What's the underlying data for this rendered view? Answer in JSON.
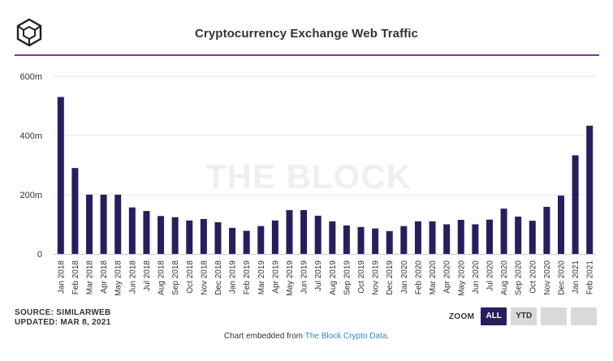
{
  "header": {
    "title": "Cryptocurrency Exchange Web Traffic",
    "logo_icon": "the-block-cube-icon"
  },
  "watermark": "THE BLOCK",
  "footer": {
    "source": "SOURCE: SIMILARWEB",
    "updated": "UPDATED: MAR 8, 2021",
    "embed_prefix": "Chart embedded from ",
    "embed_link": "The Block Crypto Data",
    "embed_suffix": "."
  },
  "zoom": {
    "label": "ZOOM",
    "buttons": [
      "ALL",
      "YTD",
      "",
      ""
    ],
    "selected": "ALL"
  },
  "colors": {
    "bar": "#2a1d5e",
    "title_rule": "#8e2fa8",
    "active_button": "#2a1d5e",
    "link": "#2a8cbe"
  },
  "chart_data": {
    "type": "bar",
    "title": "Cryptocurrency Exchange Web Traffic",
    "xlabel": "",
    "ylabel": "",
    "ylim": [
      0,
      600
    ],
    "ytick_values": [
      0,
      200,
      400,
      600
    ],
    "ytick_labels": [
      "0",
      "200m",
      "400m",
      "600m"
    ],
    "grid": true,
    "categories": [
      "Jan 2018",
      "Feb 2018",
      "Mar 2018",
      "Apr 2018",
      "May 2018",
      "Jun 2018",
      "Jul 2018",
      "Aug 2018",
      "Sep 2018",
      "Oct 2018",
      "Nov 2018",
      "Dec 2018",
      "Jan 2019",
      "Feb 2019",
      "Mar 2019",
      "Apr 2019",
      "May 2019",
      "Jun 2019",
      "Jul 2019",
      "Aug 2019",
      "Sep 2019",
      "Oct 2019",
      "Nov 2019",
      "Dec 2019",
      "Jan 2020",
      "Feb 2020",
      "Mar 2020",
      "Apr 2020",
      "May 2020",
      "Jun 2020",
      "Jul 2020",
      "Aug 2020",
      "Sep 2020",
      "Oct 2020",
      "Nov 2020",
      "Dec 2020",
      "Jan 2021",
      "Feb 2021"
    ],
    "values": [
      530,
      290,
      200,
      200,
      200,
      157,
      145,
      128,
      124,
      113,
      118,
      107,
      88,
      78,
      94,
      113,
      148,
      148,
      129,
      110,
      96,
      91,
      86,
      77,
      94,
      110,
      110,
      100,
      115,
      100,
      116,
      153,
      126,
      112,
      159,
      197,
      333,
      433
    ]
  }
}
